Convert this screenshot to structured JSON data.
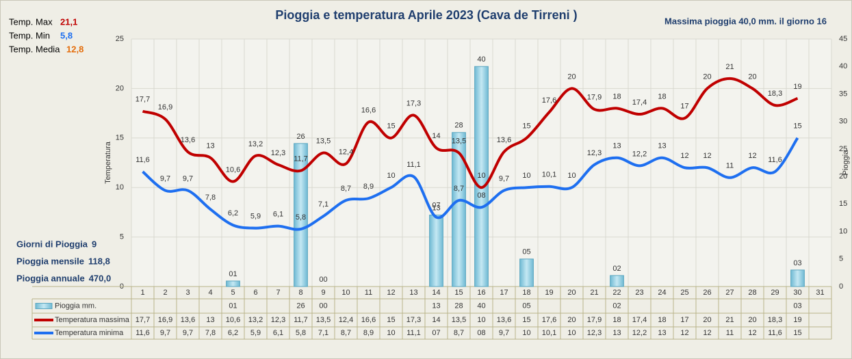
{
  "chart_data": {
    "type": "bar-line",
    "title": "Pioggia e temperatura Aprile 2023 (Cava de Tirreni )",
    "subtitle": "Massima pioggia  40,0 mm. il giorno  16",
    "stats_top": [
      {
        "label": "Temp. Max",
        "value": "21,1",
        "color": "#c00000"
      },
      {
        "label": "Temp. Min",
        "value": "5,8",
        "color": "#1e6ff0"
      },
      {
        "label": "Temp. Media",
        "value": "12,8",
        "color": "#e46c0a"
      }
    ],
    "stats_bottom": [
      {
        "label": "Giorni di Pioggia",
        "value": "9"
      },
      {
        "label": "Pioggia mensile",
        "value": "118,8"
      },
      {
        "label": "Pioggia annuale",
        "value": "470,0"
      }
    ],
    "ylabel": "Temperatura",
    "y2label": "Pioggia",
    "categories": [
      "1",
      "2",
      "3",
      "4",
      "5",
      "6",
      "7",
      "8",
      "9",
      "10",
      "11",
      "12",
      "13",
      "14",
      "15",
      "16",
      "17",
      "18",
      "19",
      "20",
      "21",
      "22",
      "23",
      "24",
      "25",
      "26",
      "27",
      "28",
      "29",
      "30",
      "31"
    ],
    "ylim": [
      0,
      25
    ],
    "yticks": [
      0,
      5,
      10,
      15,
      20,
      25
    ],
    "y2lim": [
      0,
      45
    ],
    "y2ticks": [
      0,
      5,
      10,
      15,
      20,
      25,
      30,
      35,
      40,
      45
    ],
    "grid": true,
    "series": [
      {
        "name": "Pioggia mm.",
        "type": "bar",
        "axis": "y2",
        "color": "#8fd0e4",
        "values": [
          null,
          null,
          null,
          null,
          1,
          null,
          null,
          26,
          0,
          null,
          null,
          null,
          null,
          13,
          28,
          40,
          null,
          5,
          null,
          null,
          null,
          2,
          null,
          null,
          null,
          null,
          null,
          null,
          null,
          3,
          null
        ],
        "value_labels": [
          null,
          null,
          null,
          null,
          "01",
          null,
          null,
          "26",
          "00",
          null,
          null,
          null,
          null,
          "13",
          "28",
          "40",
          null,
          "05",
          null,
          null,
          null,
          "02",
          null,
          null,
          null,
          null,
          null,
          null,
          null,
          "03",
          null
        ]
      },
      {
        "name": "Temperatura massima",
        "type": "line",
        "color": "#c00000",
        "values": [
          17.7,
          16.9,
          13.6,
          13,
          10.6,
          13.2,
          12.3,
          11.7,
          13.5,
          12.4,
          16.6,
          15,
          17.3,
          14,
          13.5,
          10,
          13.6,
          15,
          17.6,
          20,
          17.9,
          18,
          17.4,
          18,
          17,
          20,
          21,
          20,
          18.3,
          19,
          null
        ],
        "value_labels": [
          "17,7",
          "16,9",
          "13,6",
          "13",
          "10,6",
          "13,2",
          "12,3",
          "11,7",
          "13,5",
          "12,4",
          "16,6",
          "15",
          "17,3",
          "14",
          "13,5",
          "10",
          "13,6",
          "15",
          "17,6",
          "20",
          "17,9",
          "18",
          "17,4",
          "18",
          "17",
          "20",
          "21",
          "20",
          "18,3",
          "19",
          null
        ]
      },
      {
        "name": "Temperatura minima",
        "type": "line",
        "color": "#1e6ff0",
        "values": [
          11.6,
          9.7,
          9.7,
          7.8,
          6.2,
          5.9,
          6.1,
          5.8,
          7.1,
          8.7,
          8.9,
          10,
          11.1,
          7,
          8.7,
          8,
          9.7,
          10,
          10.1,
          10,
          12.3,
          13,
          12.2,
          13,
          12,
          12,
          11,
          12,
          11.6,
          15,
          null
        ],
        "value_labels": [
          "11,6",
          "9,7",
          "9,7",
          "7,8",
          "6,2",
          "5,9",
          "6,1",
          "5,8",
          "7,1",
          "8,7",
          "8,9",
          "10",
          "11,1",
          "07",
          "8,7",
          "08",
          "9,7",
          "10",
          "10,1",
          "10",
          "12,3",
          "13",
          "12,2",
          "13",
          "12",
          "12",
          "11",
          "12",
          "11,6",
          "15",
          null
        ]
      }
    ]
  }
}
